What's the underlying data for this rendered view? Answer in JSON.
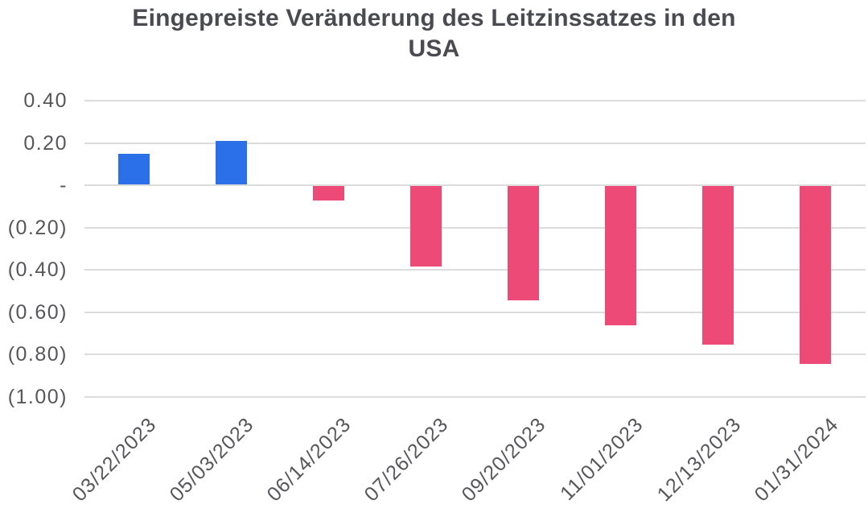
{
  "chart_data": {
    "type": "bar",
    "title": "Eingepreiste Veränderung des Leitzinssatzes in den USA",
    "title_lines": [
      "Eingepreiste Veränderung des Leitzinssatzes in den",
      "USA"
    ],
    "categories": [
      "03/22/2023",
      "05/03/2023",
      "06/14/2023",
      "07/26/2023",
      "09/20/2023",
      "11/01/2023",
      "12/13/2023",
      "01/31/2024"
    ],
    "values": [
      0.15,
      0.21,
      -0.07,
      -0.38,
      -0.54,
      -0.66,
      -0.75,
      -0.84
    ],
    "xlabel": "",
    "ylabel": "",
    "ylim": [
      -1.0,
      0.4
    ],
    "y_ticks": [
      {
        "value": 0.4,
        "label": "0.40"
      },
      {
        "value": 0.2,
        "label": "0.20"
      },
      {
        "value": 0.0,
        "label": "-"
      },
      {
        "value": -0.2,
        "label": "(0.20)"
      },
      {
        "value": -0.4,
        "label": "(0.40)"
      },
      {
        "value": -0.6,
        "label": "(0.60)"
      },
      {
        "value": -0.8,
        "label": "(0.80)"
      },
      {
        "value": -1.0,
        "label": "(1.00)"
      }
    ],
    "number_format": "accounting",
    "x_tick_rotation_deg": -45,
    "legend": "none",
    "grid": "horizontal",
    "colors": {
      "positive_bar": "#2c70e9",
      "negative_bar": "#ee4a78",
      "gridline": "#dcdcdc",
      "title_text": "#4a4a51",
      "tick_text": "#57575b",
      "background": "#ffffff"
    }
  }
}
